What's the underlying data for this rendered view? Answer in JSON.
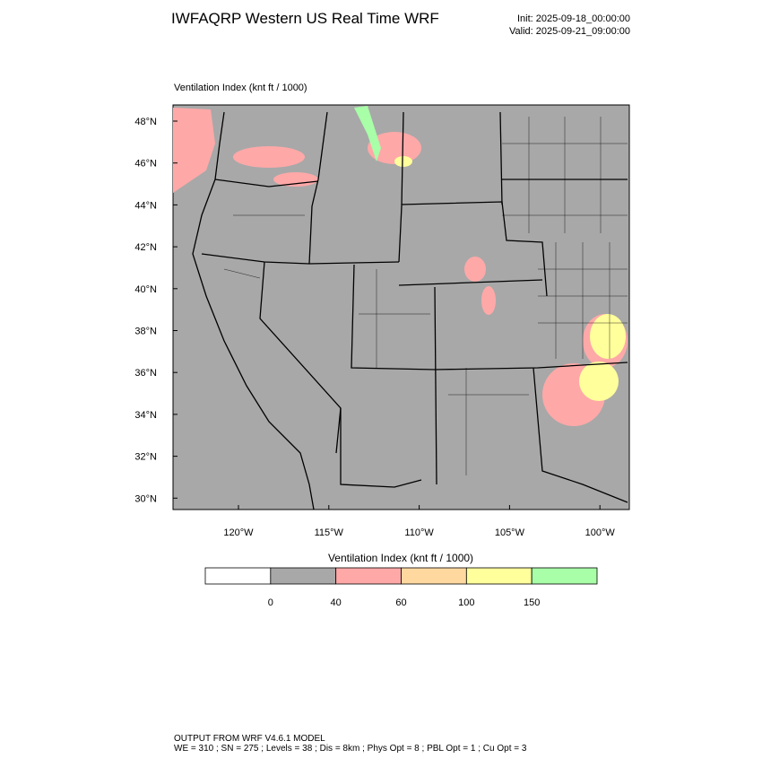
{
  "header": {
    "title": "IWFAQRP Western US Real Time WRF",
    "init": "Init: 2025-09-18_00:00:00",
    "valid": "Valid: 2025-09-21_09:00:00"
  },
  "map": {
    "label": "Ventilation Index   (knt ft / 1000)",
    "lat_labels": [
      "48°N",
      "46°N",
      "44°N",
      "42°N",
      "40°N",
      "38°N",
      "36°N",
      "34°N",
      "32°N",
      "30°N"
    ],
    "lon_labels": [
      "120°W",
      "115°W",
      "110°W",
      "105°W",
      "100°W"
    ]
  },
  "legend": {
    "title": "Ventilation Index   (knt ft / 1000)",
    "colors": [
      "#ffffff",
      "#a8a8a8",
      "#ffa8a8",
      "#ffd8a0",
      "#ffff9c",
      "#a8ffa8"
    ],
    "labels": [
      "0",
      "40",
      "60",
      "100",
      "150"
    ]
  },
  "footer": {
    "line1": "OUTPUT FROM WRF V4.6.1 MODEL",
    "line2": "WE = 310 ; SN = 275 ; Levels = 38 ; Dis = 8km ; Phys Opt = 8 ; PBL Opt = 1 ; Cu Opt = 3"
  }
}
